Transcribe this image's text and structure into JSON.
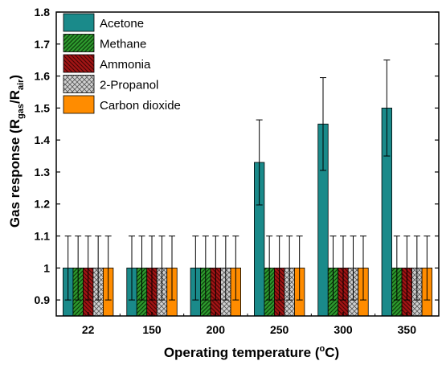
{
  "chart_data": {
    "type": "bar",
    "xlabel_main": "Operating temperature (",
    "xlabel_sup": "o",
    "xlabel_end": "C)",
    "ylabel_main": "Gas response (R",
    "ylabel_sub1": "gas",
    "ylabel_mid": "/R",
    "ylabel_sub2": "air",
    "ylabel_end": ")",
    "categories": [
      "22",
      "150",
      "200",
      "250",
      "300",
      "350"
    ],
    "ylim": [
      0.85,
      1.8
    ],
    "yticks": [
      "0.9",
      "1",
      "1.1",
      "1.2",
      "1.3",
      "1.4",
      "1.5",
      "1.6",
      "1.7",
      "1.8"
    ],
    "ytick_values": [
      0.9,
      1.0,
      1.1,
      1.2,
      1.3,
      1.4,
      1.5,
      1.6,
      1.7,
      1.8
    ],
    "grid": false,
    "legend_position": "top-left",
    "series": [
      {
        "name": "Acetone",
        "color": "#1a8a8a",
        "pattern": "solid",
        "values": [
          1.0,
          1.0,
          1.0,
          1.33,
          1.45,
          1.5
        ],
        "errors": [
          0.1,
          0.1,
          0.1,
          0.133,
          0.145,
          0.15
        ]
      },
      {
        "name": "Methane",
        "color": "#2e9a2e",
        "pattern": "diag-forward",
        "values": [
          1.0,
          1.0,
          1.0,
          1.0,
          1.0,
          1.0
        ],
        "errors": [
          0.1,
          0.1,
          0.1,
          0.1,
          0.1,
          0.1
        ]
      },
      {
        "name": "Ammonia",
        "color": "#a31515",
        "pattern": "diag-back",
        "values": [
          1.0,
          1.0,
          1.0,
          1.0,
          1.0,
          1.0
        ],
        "errors": [
          0.1,
          0.1,
          0.1,
          0.1,
          0.1,
          0.1
        ]
      },
      {
        "name": "2-Propanol",
        "color": "#d0d0d0",
        "pattern": "cross",
        "values": [
          1.0,
          1.0,
          1.0,
          1.0,
          1.0,
          1.0
        ],
        "errors": [
          0.1,
          0.1,
          0.1,
          0.1,
          0.1,
          0.1
        ]
      },
      {
        "name": "Carbon dioxide",
        "color": "#ff8c00",
        "pattern": "solid",
        "values": [
          1.0,
          1.0,
          1.0,
          1.0,
          1.0,
          1.0
        ],
        "errors": [
          0.1,
          0.1,
          0.1,
          0.1,
          0.1,
          0.1
        ]
      }
    ]
  }
}
